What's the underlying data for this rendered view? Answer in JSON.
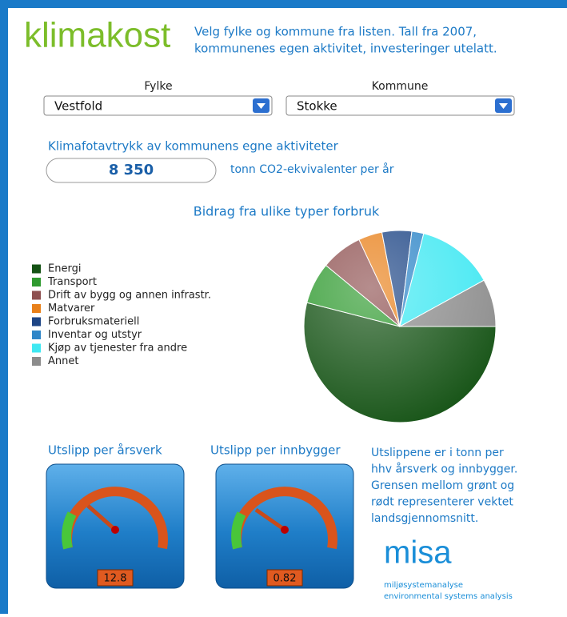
{
  "header": {
    "logo": "klimakost",
    "text_line1": "Velg fylke og kommune fra listen. Tall fra 2007,",
    "text_line2": "kommunenes egen aktivitet, investeringer utelatt."
  },
  "selectors": [
    {
      "label": "Fylke",
      "value": "Vestfold"
    },
    {
      "label": "Kommune",
      "value": "Stokke"
    }
  ],
  "footprint": {
    "title": "Klimafotavtrykk av kommunens egne aktiviteter",
    "value": "8 350",
    "unit": "tonn CO2-ekvivalenter per år"
  },
  "chart_data": {
    "type": "pie",
    "title": "Bidrag fra ulike typer forbruk",
    "categories": [
      "Energi",
      "Transport",
      "Drift av bygg og annen infrastr.",
      "Matvarer",
      "Forbruksmateriell",
      "Inventar og utstyr",
      "Kjøp av tjenester fra andre",
      "Annet"
    ],
    "values": [
      54,
      7,
      7,
      4,
      5,
      2,
      13,
      8
    ],
    "colors": [
      "#145214",
      "#2f9a2f",
      "#8e5050",
      "#e8801a",
      "#1d4585",
      "#2f86c8",
      "#3fe8f2",
      "#8c8c8c"
    ]
  },
  "gauges": [
    {
      "title": "Utslipp per årsverk",
      "value": "12.8"
    },
    {
      "title": "Utslipp per innbygger",
      "value": "0.82"
    }
  ],
  "note": [
    "Utslippene er i tonn per",
    "hhv årsverk og innbygger.",
    "Grensen mellom grønt og",
    "rødt representerer vektet",
    "landsgjennomsnitt."
  ],
  "misa": {
    "logo": "misa",
    "line1": "miljøsystemanalyse",
    "line2": "environmental systems analysis"
  }
}
